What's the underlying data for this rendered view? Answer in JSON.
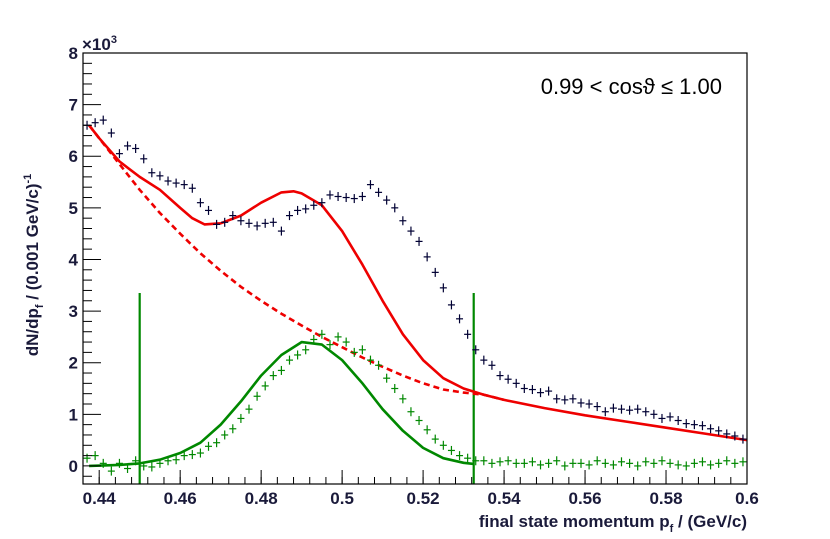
{
  "chart_data": {
    "type": "scatter",
    "title": "",
    "xlabel": "final state momentum p",
    "xlabel_sub": "f",
    "xlabel_unit": " / (GeV/c)",
    "ylabel": "dN/dp",
    "ylabel_sub": "f",
    "ylabel_unit": " / (0.001 GeV/c)",
    "ylabel_sup": "-1",
    "y_multiplier": "×10",
    "y_multiplier_exp": "3",
    "annotation": "0.99 < cosϑ ≤ 1.00",
    "xlim": [
      0.436,
      0.6
    ],
    "ylim": [
      -0.35,
      8
    ],
    "x_ticks": [
      0.44,
      0.46,
      0.48,
      0.5,
      0.52,
      0.54,
      0.56,
      0.58,
      0.6
    ],
    "x_tick_labels": [
      "0.44",
      "0.46",
      "0.48",
      "0.5",
      "0.52",
      "0.54",
      "0.56",
      "0.58",
      "0.6"
    ],
    "y_ticks": [
      0,
      1,
      2,
      3,
      4,
      5,
      6,
      7,
      8
    ],
    "y_tick_labels": [
      "0",
      "1",
      "2",
      "3",
      "4",
      "5",
      "6",
      "7",
      "8"
    ],
    "colors": {
      "total": "#000033",
      "fit": "#ee0000",
      "signal": "#008800"
    },
    "vertical_lines": [
      {
        "x": 0.45,
        "y_top": 3.35,
        "color": "#008800"
      },
      {
        "x": 0.5325,
        "y_top": 3.35,
        "color": "#008800"
      }
    ],
    "series": [
      {
        "kind": "points",
        "color": "#000033",
        "points": [
          [
            0.437,
            6.6
          ],
          [
            0.439,
            6.65
          ],
          [
            0.441,
            6.7
          ],
          [
            0.443,
            6.45
          ],
          [
            0.445,
            6.05
          ],
          [
            0.447,
            6.2
          ],
          [
            0.449,
            6.15
          ],
          [
            0.451,
            5.95
          ],
          [
            0.453,
            5.68
          ],
          [
            0.455,
            5.62
          ],
          [
            0.457,
            5.52
          ],
          [
            0.459,
            5.48
          ],
          [
            0.461,
            5.45
          ],
          [
            0.463,
            5.38
          ],
          [
            0.465,
            5.1
          ],
          [
            0.467,
            4.95
          ],
          [
            0.469,
            4.68
          ],
          [
            0.471,
            4.72
          ],
          [
            0.473,
            4.85
          ],
          [
            0.475,
            4.75
          ],
          [
            0.477,
            4.7
          ],
          [
            0.479,
            4.65
          ],
          [
            0.481,
            4.7
          ],
          [
            0.483,
            4.72
          ],
          [
            0.485,
            4.55
          ],
          [
            0.487,
            4.85
          ],
          [
            0.489,
            4.95
          ],
          [
            0.491,
            4.98
          ],
          [
            0.493,
            5.05
          ],
          [
            0.495,
            5.1
          ],
          [
            0.497,
            5.25
          ],
          [
            0.499,
            5.22
          ],
          [
            0.501,
            5.2
          ],
          [
            0.503,
            5.18
          ],
          [
            0.505,
            5.22
          ],
          [
            0.507,
            5.45
          ],
          [
            0.509,
            5.3
          ],
          [
            0.511,
            5.15
          ],
          [
            0.513,
            5.0
          ],
          [
            0.515,
            4.75
          ],
          [
            0.517,
            4.55
          ],
          [
            0.519,
            4.35
          ],
          [
            0.521,
            4.05
          ],
          [
            0.523,
            3.75
          ],
          [
            0.525,
            3.45
          ],
          [
            0.527,
            3.12
          ],
          [
            0.529,
            2.85
          ],
          [
            0.531,
            2.55
          ],
          [
            0.533,
            2.25
          ],
          [
            0.535,
            2.05
          ],
          [
            0.537,
            1.95
          ],
          [
            0.539,
            1.75
          ],
          [
            0.541,
            1.68
          ],
          [
            0.543,
            1.6
          ],
          [
            0.545,
            1.5
          ],
          [
            0.547,
            1.48
          ],
          [
            0.549,
            1.42
          ],
          [
            0.551,
            1.45
          ],
          [
            0.553,
            1.3
          ],
          [
            0.555,
            1.28
          ],
          [
            0.557,
            1.3
          ],
          [
            0.559,
            1.22
          ],
          [
            0.561,
            1.2
          ],
          [
            0.563,
            1.15
          ],
          [
            0.565,
            1.05
          ],
          [
            0.567,
            1.12
          ],
          [
            0.569,
            1.1
          ],
          [
            0.571,
            1.08
          ],
          [
            0.573,
            1.1
          ],
          [
            0.575,
            1.05
          ],
          [
            0.577,
            1.0
          ],
          [
            0.579,
            0.92
          ],
          [
            0.581,
            0.95
          ],
          [
            0.583,
            0.88
          ],
          [
            0.585,
            0.82
          ],
          [
            0.587,
            0.8
          ],
          [
            0.589,
            0.78
          ],
          [
            0.591,
            0.72
          ],
          [
            0.593,
            0.68
          ],
          [
            0.595,
            0.62
          ],
          [
            0.597,
            0.58
          ],
          [
            0.599,
            0.52
          ]
        ]
      },
      {
        "kind": "points",
        "color": "#008800",
        "points": [
          [
            0.437,
            0.15
          ],
          [
            0.439,
            0.2
          ],
          [
            0.441,
            0.05
          ],
          [
            0.443,
            -0.1
          ],
          [
            0.445,
            0.05
          ],
          [
            0.447,
            -0.05
          ],
          [
            0.449,
            0.1
          ],
          [
            0.451,
            0.0
          ],
          [
            0.453,
            -0.02
          ],
          [
            0.455,
            0.05
          ],
          [
            0.457,
            0.1
          ],
          [
            0.459,
            0.12
          ],
          [
            0.461,
            0.2
          ],
          [
            0.463,
            0.22
          ],
          [
            0.465,
            0.25
          ],
          [
            0.467,
            0.38
          ],
          [
            0.469,
            0.45
          ],
          [
            0.471,
            0.6
          ],
          [
            0.473,
            0.72
          ],
          [
            0.475,
            0.92
          ],
          [
            0.477,
            1.1
          ],
          [
            0.479,
            1.35
          ],
          [
            0.481,
            1.55
          ],
          [
            0.483,
            1.75
          ],
          [
            0.485,
            1.85
          ],
          [
            0.487,
            2.05
          ],
          [
            0.489,
            2.15
          ],
          [
            0.491,
            2.25
          ],
          [
            0.493,
            2.45
          ],
          [
            0.495,
            2.55
          ],
          [
            0.497,
            2.35
          ],
          [
            0.499,
            2.5
          ],
          [
            0.501,
            2.4
          ],
          [
            0.503,
            2.2
          ],
          [
            0.505,
            2.25
          ],
          [
            0.507,
            2.05
          ],
          [
            0.509,
            1.95
          ],
          [
            0.511,
            1.7
          ],
          [
            0.513,
            1.5
          ],
          [
            0.515,
            1.3
          ],
          [
            0.517,
            1.05
          ],
          [
            0.519,
            0.88
          ],
          [
            0.521,
            0.7
          ],
          [
            0.523,
            0.52
          ],
          [
            0.525,
            0.4
          ],
          [
            0.527,
            0.3
          ],
          [
            0.529,
            0.2
          ],
          [
            0.531,
            0.15
          ],
          [
            0.533,
            0.1
          ],
          [
            0.535,
            0.1
          ],
          [
            0.537,
            0.05
          ],
          [
            0.539,
            0.08
          ],
          [
            0.541,
            0.1
          ],
          [
            0.543,
            0.05
          ],
          [
            0.545,
            0.05
          ],
          [
            0.547,
            0.08
          ],
          [
            0.549,
            0.02
          ],
          [
            0.551,
            0.05
          ],
          [
            0.553,
            0.1
          ],
          [
            0.555,
            0.0
          ],
          [
            0.557,
            0.05
          ],
          [
            0.559,
            0.05
          ],
          [
            0.561,
            0.02
          ],
          [
            0.563,
            0.1
          ],
          [
            0.565,
            0.05
          ],
          [
            0.567,
            0.02
          ],
          [
            0.569,
            0.08
          ],
          [
            0.571,
            0.05
          ],
          [
            0.573,
            0.0
          ],
          [
            0.575,
            0.08
          ],
          [
            0.577,
            0.05
          ],
          [
            0.579,
            0.1
          ],
          [
            0.581,
            0.05
          ],
          [
            0.583,
            0.02
          ],
          [
            0.585,
            0.0
          ],
          [
            0.587,
            0.05
          ],
          [
            0.589,
            0.08
          ],
          [
            0.591,
            0.02
          ],
          [
            0.593,
            0.05
          ],
          [
            0.595,
            0.1
          ],
          [
            0.597,
            0.05
          ],
          [
            0.599,
            0.08
          ]
        ]
      },
      {
        "kind": "curve",
        "color": "#ee0000",
        "dashed": false,
        "points": [
          [
            0.4375,
            6.6
          ],
          [
            0.44,
            6.35
          ],
          [
            0.445,
            5.9
          ],
          [
            0.45,
            5.6
          ],
          [
            0.455,
            5.35
          ],
          [
            0.46,
            5.0
          ],
          [
            0.463,
            4.8
          ],
          [
            0.466,
            4.68
          ],
          [
            0.47,
            4.7
          ],
          [
            0.475,
            4.85
          ],
          [
            0.48,
            5.1
          ],
          [
            0.485,
            5.3
          ],
          [
            0.488,
            5.32
          ],
          [
            0.49,
            5.28
          ],
          [
            0.495,
            5.05
          ],
          [
            0.5,
            4.55
          ],
          [
            0.505,
            3.9
          ],
          [
            0.51,
            3.2
          ],
          [
            0.515,
            2.55
          ],
          [
            0.52,
            2.05
          ],
          [
            0.525,
            1.7
          ],
          [
            0.53,
            1.5
          ],
          [
            0.535,
            1.38
          ],
          [
            0.54,
            1.28
          ],
          [
            0.55,
            1.12
          ],
          [
            0.56,
            0.98
          ],
          [
            0.57,
            0.86
          ],
          [
            0.58,
            0.74
          ],
          [
            0.59,
            0.62
          ],
          [
            0.6,
            0.5
          ]
        ]
      },
      {
        "kind": "curve",
        "color": "#ee0000",
        "dashed": true,
        "points": [
          [
            0.4375,
            6.6
          ],
          [
            0.44,
            6.35
          ],
          [
            0.445,
            5.85
          ],
          [
            0.45,
            5.35
          ],
          [
            0.455,
            4.9
          ],
          [
            0.46,
            4.5
          ],
          [
            0.465,
            4.12
          ],
          [
            0.47,
            3.78
          ],
          [
            0.475,
            3.47
          ],
          [
            0.48,
            3.2
          ],
          [
            0.485,
            2.95
          ],
          [
            0.49,
            2.72
          ],
          [
            0.495,
            2.5
          ],
          [
            0.5,
            2.3
          ],
          [
            0.505,
            2.1
          ],
          [
            0.51,
            1.92
          ],
          [
            0.515,
            1.75
          ],
          [
            0.52,
            1.6
          ],
          [
            0.525,
            1.48
          ],
          [
            0.53,
            1.42
          ],
          [
            0.535,
            1.38
          ],
          [
            0.54,
            1.28
          ]
        ]
      },
      {
        "kind": "curve",
        "color": "#008800",
        "dashed": false,
        "points": [
          [
            0.4375,
            0.0
          ],
          [
            0.445,
            0.02
          ],
          [
            0.45,
            0.05
          ],
          [
            0.455,
            0.12
          ],
          [
            0.46,
            0.25
          ],
          [
            0.465,
            0.45
          ],
          [
            0.47,
            0.8
          ],
          [
            0.475,
            1.25
          ],
          [
            0.48,
            1.75
          ],
          [
            0.485,
            2.15
          ],
          [
            0.49,
            2.4
          ],
          [
            0.495,
            2.35
          ],
          [
            0.5,
            2.05
          ],
          [
            0.505,
            1.6
          ],
          [
            0.51,
            1.1
          ],
          [
            0.515,
            0.68
          ],
          [
            0.52,
            0.35
          ],
          [
            0.525,
            0.15
          ],
          [
            0.53,
            0.06
          ],
          [
            0.5325,
            0.04
          ]
        ]
      }
    ]
  }
}
